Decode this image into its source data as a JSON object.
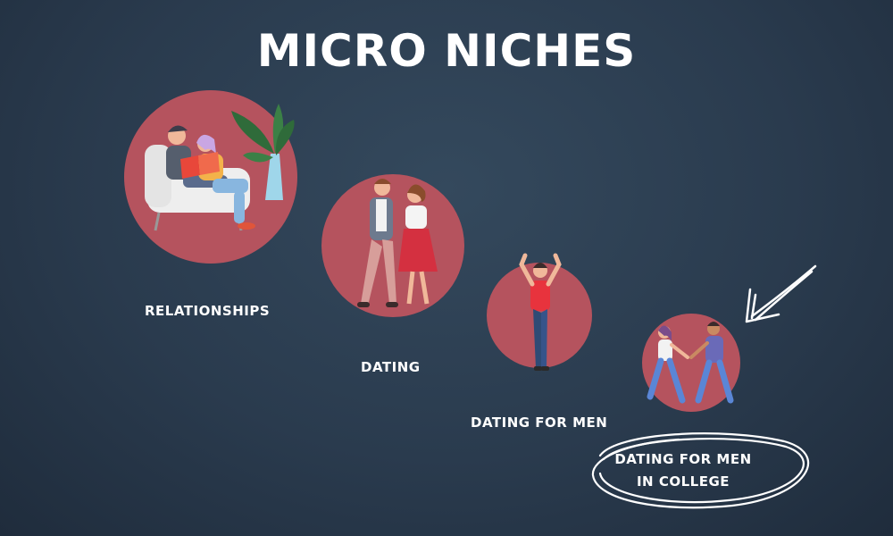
{
  "title": "MICRO NICHES",
  "levels": [
    {
      "label": "RELATIONSHIPS",
      "icon": "couple-reading-icon"
    },
    {
      "label": "DATING",
      "icon": "couple-walking-icon"
    },
    {
      "label": "DATING FOR MEN",
      "icon": "cheering-man-icon"
    },
    {
      "label_line1": "DATING FOR MEN",
      "label_line2": "IN COLLEGE",
      "icon": "students-holding-hands-icon"
    }
  ],
  "colors": {
    "background": "#2a3b4e",
    "circle": "#b5535e",
    "text": "#ffffff"
  }
}
